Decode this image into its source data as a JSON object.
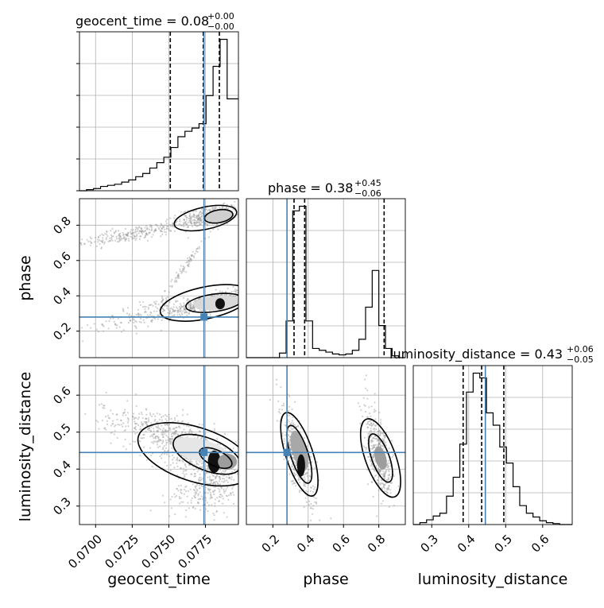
{
  "chart_data": {
    "type": "corner",
    "parameters": [
      "geocent_time",
      "phase",
      "luminosity_distance"
    ],
    "truths": {
      "geocent_time": 0.0774,
      "phase": 0.28,
      "luminosity_distance": 0.445
    },
    "titles": [
      {
        "param": "geocent_time",
        "text": "geocent_time = 0.08",
        "plus": "+0.00",
        "minus": "−0.00"
      },
      {
        "param": "phase",
        "text": "phase = 0.38",
        "plus": "+0.45",
        "minus": "−0.06"
      },
      {
        "param": "luminosity_distance",
        "text": "luminosity_distance = 0.43",
        "plus": "+0.06",
        "minus": "−0.05"
      }
    ],
    "axis_labels": {
      "x": [
        "geocent_time",
        "phase",
        "luminosity_distance"
      ],
      "y": [
        "phase",
        "luminosity_distance"
      ]
    },
    "ranges": {
      "geocent_time": [
        0.0689,
        0.07975
      ],
      "phase": [
        0.05,
        0.95
      ],
      "luminosity_distance": [
        0.25,
        0.68
      ]
    },
    "tick_labels": {
      "geocent_time": [
        "0.0700",
        "0.0725",
        "0.0750",
        "0.0775"
      ],
      "phase": [
        "0.2",
        "0.4",
        "0.6",
        "0.8"
      ],
      "luminosity_distance": [
        "0.3",
        "0.4",
        "0.5",
        "0.6"
      ]
    },
    "tick_values": {
      "geocent_time": [
        0.07,
        0.0725,
        0.075,
        0.0775
      ],
      "phase": [
        0.2,
        0.4,
        0.6,
        0.8
      ],
      "luminosity_distance": [
        0.3,
        0.4,
        0.5,
        0.6
      ]
    },
    "histograms": {
      "geocent_time": {
        "edges": [
          0.0689,
          0.06938,
          0.06986,
          0.07034,
          0.07082,
          0.0713,
          0.07178,
          0.07226,
          0.07274,
          0.07322,
          0.0737,
          0.07418,
          0.07466,
          0.07514,
          0.07562,
          0.0761,
          0.07658,
          0.07706,
          0.07754,
          0.07802,
          0.0785,
          0.07898,
          0.07946,
          0.07975
        ],
        "counts": [
          0,
          1,
          2,
          4,
          5,
          6,
          8,
          10,
          13,
          16,
          21,
          26,
          31,
          40,
          50,
          55,
          58,
          62,
          88,
          115,
          140,
          85,
          85
        ]
      },
      "phase": {
        "edges": [
          0.05,
          0.0875,
          0.125,
          0.1625,
          0.2,
          0.2375,
          0.275,
          0.3125,
          0.35,
          0.3875,
          0.425,
          0.4625,
          0.5,
          0.5375,
          0.575,
          0.6125,
          0.65,
          0.6875,
          0.725,
          0.7625,
          0.8,
          0.8375,
          0.875,
          0.9125,
          0.95
        ],
        "counts": [
          0,
          0,
          0,
          0,
          0,
          5,
          40,
          160,
          165,
          40,
          10,
          8,
          6,
          4,
          3,
          4,
          8,
          20,
          55,
          95,
          35,
          10,
          2,
          0
        ]
      },
      "luminosity_distance": {
        "edges": [
          0.25,
          0.268,
          0.286,
          0.304,
          0.322,
          0.34,
          0.358,
          0.376,
          0.394,
          0.412,
          0.43,
          0.448,
          0.466,
          0.484,
          0.502,
          0.52,
          0.538,
          0.556,
          0.574,
          0.592,
          0.61,
          0.628,
          0.646,
          0.664,
          0.68
        ],
        "counts": [
          0,
          2,
          5,
          9,
          12,
          30,
          50,
          85,
          140,
          160,
          155,
          118,
          105,
          82,
          65,
          40,
          20,
          12,
          8,
          4,
          2,
          1,
          0,
          0
        ]
      }
    },
    "quantiles": {
      "geocent_time": [
        0.0751,
        0.07735,
        0.07845
      ],
      "phase": [
        0.32,
        0.38,
        0.83
      ],
      "luminosity_distance": [
        0.385,
        0.435,
        0.495
      ]
    },
    "grid": true,
    "colors": {
      "truth": "#4682b4",
      "line": "#000000",
      "scatter": "#9a9a9a"
    }
  }
}
